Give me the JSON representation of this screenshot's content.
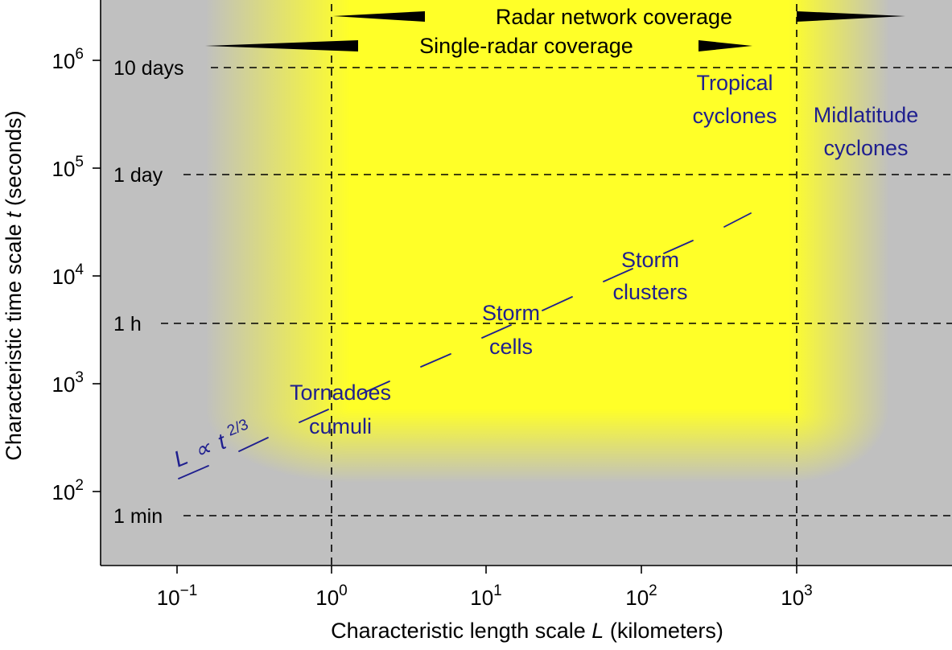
{
  "x_axis": {
    "label_prefix": "Characteristic length scale ",
    "label_var": "L",
    "label_suffix": " (kilometers)",
    "ticks": [
      {
        "base": "10",
        "exp": "−1"
      },
      {
        "base": "10",
        "exp": "0"
      },
      {
        "base": "10",
        "exp": "1"
      },
      {
        "base": "10",
        "exp": "2"
      },
      {
        "base": "10",
        "exp": "3"
      }
    ]
  },
  "y_axis": {
    "label_prefix": "Characteristic time scale ",
    "label_var": "t",
    "label_suffix": " (seconds)",
    "ticks": [
      {
        "base": "10",
        "exp": "2"
      },
      {
        "base": "10",
        "exp": "3"
      },
      {
        "base": "10",
        "exp": "4"
      },
      {
        "base": "10",
        "exp": "5"
      },
      {
        "base": "10",
        "exp": "6"
      }
    ]
  },
  "time_markers": [
    "10 days",
    "1 day",
    "1 h",
    "1 min"
  ],
  "coverage": {
    "network": "Radar network coverage",
    "single": "Single-radar coverage"
  },
  "phenomena": {
    "tornadoes": [
      "Tornadoes",
      "cumuli"
    ],
    "storm_cells": [
      "Storm",
      "cells"
    ],
    "storm_clusters": [
      "Storm",
      "clusters"
    ],
    "tropical": [
      "Tropical",
      "cyclones"
    ],
    "midlatitude": [
      "Midlatitude",
      "cyclones"
    ]
  },
  "proportionality": {
    "var": "L",
    "symbol": "∝",
    "rhs": "t",
    "exp": "2/3"
  },
  "colors": {
    "background": "#c0c0c0",
    "coverage_area": "#ffff28",
    "phenomena_text": "#1f1f8f"
  }
}
